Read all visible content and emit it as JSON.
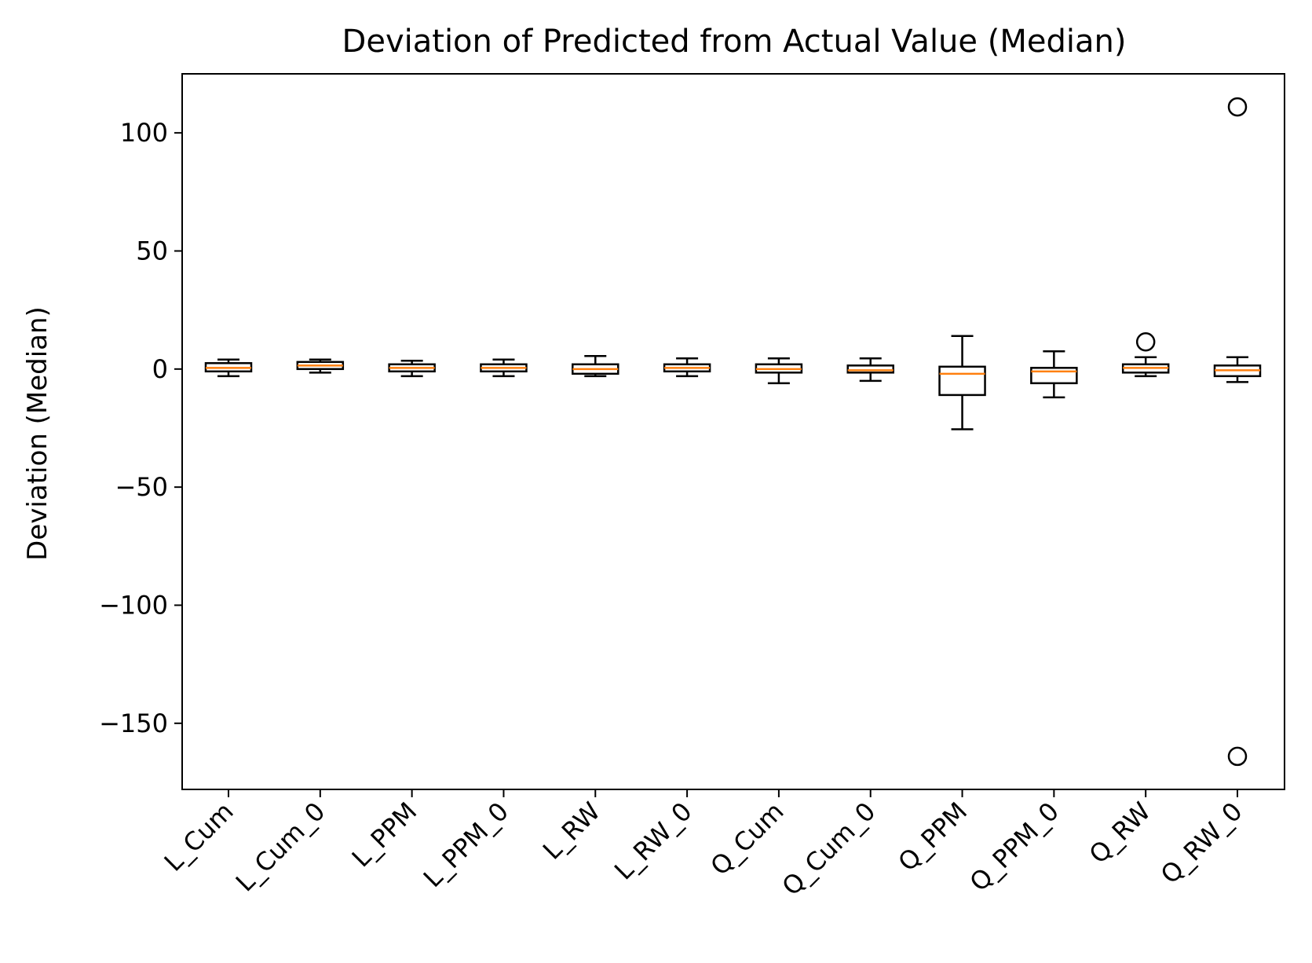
{
  "chart_data": {
    "type": "boxplot",
    "title": "Deviation of Predicted from Actual Value (Median)",
    "xlabel": "",
    "ylabel": "Deviation (Median)",
    "ylim": [
      -178,
      125
    ],
    "yticks": [
      100,
      50,
      0,
      -50,
      -100,
      -150
    ],
    "ytick_labels": [
      "100",
      "50",
      "0",
      "−50",
      "−100",
      "−150"
    ],
    "grid": false,
    "categories": [
      "L_Cum",
      "L_Cum_0",
      "L_PPM",
      "L_PPM_0",
      "L_RW",
      "L_RW_0",
      "Q_Cum",
      "Q_Cum_0",
      "Q_PPM",
      "Q_PPM_0",
      "Q_RW",
      "Q_RW_0"
    ],
    "boxes": [
      {
        "whislo": -3,
        "q1": -1,
        "med": 0.5,
        "q3": 2.5,
        "whishi": 4,
        "fliers": []
      },
      {
        "whislo": -1.5,
        "q1": 0,
        "med": 1.5,
        "q3": 3,
        "whishi": 4,
        "fliers": []
      },
      {
        "whislo": -3,
        "q1": -1,
        "med": 0.5,
        "q3": 2,
        "whishi": 3.5,
        "fliers": []
      },
      {
        "whislo": -3,
        "q1": -1,
        "med": 0.5,
        "q3": 2,
        "whishi": 4,
        "fliers": []
      },
      {
        "whislo": -3,
        "q1": -2,
        "med": 0,
        "q3": 2,
        "whishi": 5.5,
        "fliers": []
      },
      {
        "whislo": -3,
        "q1": -1,
        "med": 0.5,
        "q3": 2,
        "whishi": 4.5,
        "fliers": []
      },
      {
        "whislo": -6,
        "q1": -1.5,
        "med": 0,
        "q3": 2,
        "whishi": 4.5,
        "fliers": []
      },
      {
        "whislo": -5,
        "q1": -1.5,
        "med": -0.5,
        "q3": 1.5,
        "whishi": 4.5,
        "fliers": []
      },
      {
        "whislo": -25.5,
        "q1": -11,
        "med": -2,
        "q3": 1,
        "whishi": 14,
        "fliers": []
      },
      {
        "whislo": -12,
        "q1": -6,
        "med": -1,
        "q3": 0.5,
        "whishi": 7.5,
        "fliers": []
      },
      {
        "whislo": -3,
        "q1": -1.5,
        "med": 0.5,
        "q3": 2,
        "whishi": 5,
        "fliers": [
          11.5
        ]
      },
      {
        "whislo": -5.5,
        "q1": -3,
        "med": -0.5,
        "q3": 1.5,
        "whishi": 5,
        "fliers": [
          111,
          -164
        ]
      }
    ],
    "colors": {
      "box": "#000000",
      "median": "#ff7f0e",
      "flier": "#000000"
    }
  }
}
